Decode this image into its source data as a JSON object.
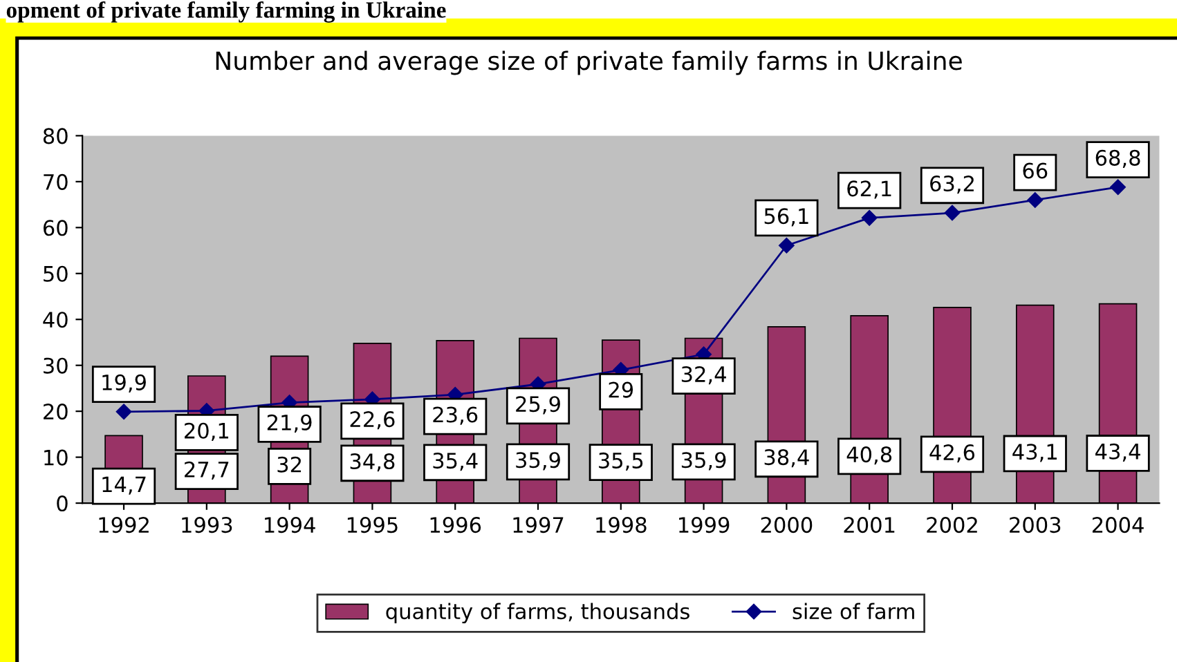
{
  "chart_data": {
    "type": "bar",
    "title": "Number and average size of private family farms in Ukraine",
    "annotations": [
      "opment of private family farming in Ukraine"
    ],
    "categories": [
      "1992",
      "1993",
      "1994",
      "1995",
      "1996",
      "1997",
      "1998",
      "1999",
      "2000",
      "2001",
      "2002",
      "2003",
      "2004"
    ],
    "series": [
      {
        "name": "quantity of farms, thousands",
        "color": "#993366",
        "values": [
          14.7,
          27.7,
          32,
          34.8,
          35.4,
          35.9,
          35.5,
          35.9,
          38.4,
          40.8,
          42.6,
          43.1,
          43.4
        ],
        "value_labels": [
          "14,7",
          "27,7",
          "32",
          "34,8",
          "35,4",
          "35,9",
          "35,5",
          "35,9",
          "38,4",
          "40,8",
          "42,6",
          "43,1",
          "43,4"
        ]
      },
      {
        "name": "size of farm",
        "type": "line",
        "color": "#000080",
        "marker": "diamond",
        "values": [
          19.9,
          20.1,
          21.9,
          22.6,
          23.6,
          25.9,
          29,
          32.4,
          56.1,
          62.1,
          63.2,
          66,
          68.8
        ],
        "value_labels": [
          "19,9",
          "20,1",
          "21,9",
          "22,6",
          "23,6",
          "25,9",
          "29",
          "32,4",
          "56,1",
          "62,1",
          "63,2",
          "66",
          "68,8"
        ]
      }
    ],
    "ylim": [
      0,
      80
    ],
    "yticks": [
      0,
      10,
      20,
      30,
      40,
      50,
      60,
      70,
      80
    ],
    "grid": false,
    "legend": "bottom"
  }
}
